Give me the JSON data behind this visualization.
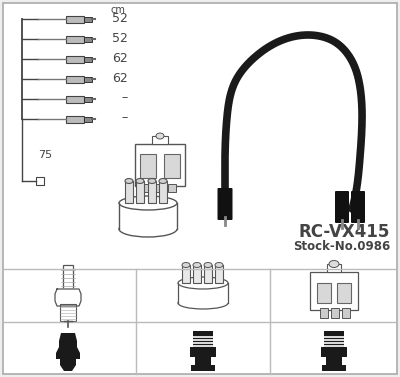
{
  "title": "RC-VX415",
  "subtitle": "Stock-No.0986",
  "bg_color": "#eeeeee",
  "border_color": "#aaaaaa",
  "line_color": "#444444",
  "cable_color": "#1a1a1a",
  "wire_lengths_label": "cm",
  "wire_lengths": [
    "52",
    "52",
    "62",
    "62",
    "–",
    "–"
  ],
  "coil_label": "75",
  "divider_color": "#bbbbbb",
  "text_color": "#222222",
  "icon_outline_color": "#555555",
  "icon_fill_color": "#ffffff",
  "icon_gray": "#cccccc"
}
